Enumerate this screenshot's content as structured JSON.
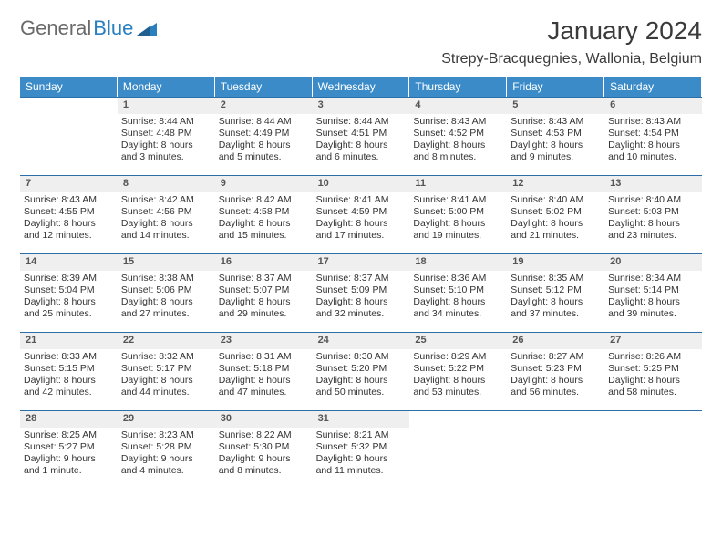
{
  "brand": {
    "text1": "General",
    "text2": "Blue"
  },
  "title": "January 2024",
  "location": "Strepy-Bracquegnies, Wallonia, Belgium",
  "colors": {
    "header_bg": "#3b8bc9",
    "header_text": "#ffffff",
    "cell_border": "#2a6fa8",
    "daynum_bg": "#efefef",
    "logo_gray": "#6a6a6a",
    "logo_blue": "#2a7fbf"
  },
  "weekdays": [
    "Sunday",
    "Monday",
    "Tuesday",
    "Wednesday",
    "Thursday",
    "Friday",
    "Saturday"
  ],
  "grid": [
    [
      {
        "day": "",
        "sunrise": "",
        "sunset": "",
        "daylight": ""
      },
      {
        "day": "1",
        "sunrise": "Sunrise: 8:44 AM",
        "sunset": "Sunset: 4:48 PM",
        "daylight": "Daylight: 8 hours and 3 minutes."
      },
      {
        "day": "2",
        "sunrise": "Sunrise: 8:44 AM",
        "sunset": "Sunset: 4:49 PM",
        "daylight": "Daylight: 8 hours and 5 minutes."
      },
      {
        "day": "3",
        "sunrise": "Sunrise: 8:44 AM",
        "sunset": "Sunset: 4:51 PM",
        "daylight": "Daylight: 8 hours and 6 minutes."
      },
      {
        "day": "4",
        "sunrise": "Sunrise: 8:43 AM",
        "sunset": "Sunset: 4:52 PM",
        "daylight": "Daylight: 8 hours and 8 minutes."
      },
      {
        "day": "5",
        "sunrise": "Sunrise: 8:43 AM",
        "sunset": "Sunset: 4:53 PM",
        "daylight": "Daylight: 8 hours and 9 minutes."
      },
      {
        "day": "6",
        "sunrise": "Sunrise: 8:43 AM",
        "sunset": "Sunset: 4:54 PM",
        "daylight": "Daylight: 8 hours and 10 minutes."
      }
    ],
    [
      {
        "day": "7",
        "sunrise": "Sunrise: 8:43 AM",
        "sunset": "Sunset: 4:55 PM",
        "daylight": "Daylight: 8 hours and 12 minutes."
      },
      {
        "day": "8",
        "sunrise": "Sunrise: 8:42 AM",
        "sunset": "Sunset: 4:56 PM",
        "daylight": "Daylight: 8 hours and 14 minutes."
      },
      {
        "day": "9",
        "sunrise": "Sunrise: 8:42 AM",
        "sunset": "Sunset: 4:58 PM",
        "daylight": "Daylight: 8 hours and 15 minutes."
      },
      {
        "day": "10",
        "sunrise": "Sunrise: 8:41 AM",
        "sunset": "Sunset: 4:59 PM",
        "daylight": "Daylight: 8 hours and 17 minutes."
      },
      {
        "day": "11",
        "sunrise": "Sunrise: 8:41 AM",
        "sunset": "Sunset: 5:00 PM",
        "daylight": "Daylight: 8 hours and 19 minutes."
      },
      {
        "day": "12",
        "sunrise": "Sunrise: 8:40 AM",
        "sunset": "Sunset: 5:02 PM",
        "daylight": "Daylight: 8 hours and 21 minutes."
      },
      {
        "day": "13",
        "sunrise": "Sunrise: 8:40 AM",
        "sunset": "Sunset: 5:03 PM",
        "daylight": "Daylight: 8 hours and 23 minutes."
      }
    ],
    [
      {
        "day": "14",
        "sunrise": "Sunrise: 8:39 AM",
        "sunset": "Sunset: 5:04 PM",
        "daylight": "Daylight: 8 hours and 25 minutes."
      },
      {
        "day": "15",
        "sunrise": "Sunrise: 8:38 AM",
        "sunset": "Sunset: 5:06 PM",
        "daylight": "Daylight: 8 hours and 27 minutes."
      },
      {
        "day": "16",
        "sunrise": "Sunrise: 8:37 AM",
        "sunset": "Sunset: 5:07 PM",
        "daylight": "Daylight: 8 hours and 29 minutes."
      },
      {
        "day": "17",
        "sunrise": "Sunrise: 8:37 AM",
        "sunset": "Sunset: 5:09 PM",
        "daylight": "Daylight: 8 hours and 32 minutes."
      },
      {
        "day": "18",
        "sunrise": "Sunrise: 8:36 AM",
        "sunset": "Sunset: 5:10 PM",
        "daylight": "Daylight: 8 hours and 34 minutes."
      },
      {
        "day": "19",
        "sunrise": "Sunrise: 8:35 AM",
        "sunset": "Sunset: 5:12 PM",
        "daylight": "Daylight: 8 hours and 37 minutes."
      },
      {
        "day": "20",
        "sunrise": "Sunrise: 8:34 AM",
        "sunset": "Sunset: 5:14 PM",
        "daylight": "Daylight: 8 hours and 39 minutes."
      }
    ],
    [
      {
        "day": "21",
        "sunrise": "Sunrise: 8:33 AM",
        "sunset": "Sunset: 5:15 PM",
        "daylight": "Daylight: 8 hours and 42 minutes."
      },
      {
        "day": "22",
        "sunrise": "Sunrise: 8:32 AM",
        "sunset": "Sunset: 5:17 PM",
        "daylight": "Daylight: 8 hours and 44 minutes."
      },
      {
        "day": "23",
        "sunrise": "Sunrise: 8:31 AM",
        "sunset": "Sunset: 5:18 PM",
        "daylight": "Daylight: 8 hours and 47 minutes."
      },
      {
        "day": "24",
        "sunrise": "Sunrise: 8:30 AM",
        "sunset": "Sunset: 5:20 PM",
        "daylight": "Daylight: 8 hours and 50 minutes."
      },
      {
        "day": "25",
        "sunrise": "Sunrise: 8:29 AM",
        "sunset": "Sunset: 5:22 PM",
        "daylight": "Daylight: 8 hours and 53 minutes."
      },
      {
        "day": "26",
        "sunrise": "Sunrise: 8:27 AM",
        "sunset": "Sunset: 5:23 PM",
        "daylight": "Daylight: 8 hours and 56 minutes."
      },
      {
        "day": "27",
        "sunrise": "Sunrise: 8:26 AM",
        "sunset": "Sunset: 5:25 PM",
        "daylight": "Daylight: 8 hours and 58 minutes."
      }
    ],
    [
      {
        "day": "28",
        "sunrise": "Sunrise: 8:25 AM",
        "sunset": "Sunset: 5:27 PM",
        "daylight": "Daylight: 9 hours and 1 minute."
      },
      {
        "day": "29",
        "sunrise": "Sunrise: 8:23 AM",
        "sunset": "Sunset: 5:28 PM",
        "daylight": "Daylight: 9 hours and 4 minutes."
      },
      {
        "day": "30",
        "sunrise": "Sunrise: 8:22 AM",
        "sunset": "Sunset: 5:30 PM",
        "daylight": "Daylight: 9 hours and 8 minutes."
      },
      {
        "day": "31",
        "sunrise": "Sunrise: 8:21 AM",
        "sunset": "Sunset: 5:32 PM",
        "daylight": "Daylight: 9 hours and 11 minutes."
      },
      {
        "day": "",
        "sunrise": "",
        "sunset": "",
        "daylight": ""
      },
      {
        "day": "",
        "sunrise": "",
        "sunset": "",
        "daylight": ""
      },
      {
        "day": "",
        "sunrise": "",
        "sunset": "",
        "daylight": ""
      }
    ]
  ]
}
